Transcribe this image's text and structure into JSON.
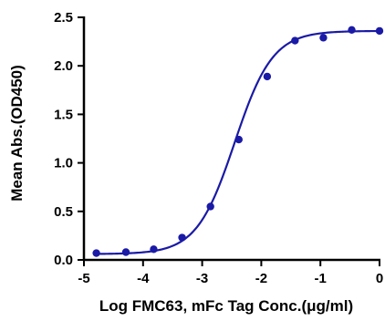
{
  "chart_data": {
    "type": "scatter",
    "title": "",
    "xlabel": "Log FMC63, mFc Tag Conc.(μg/ml)",
    "ylabel": "Mean Abs.(OD450)",
    "xlim": [
      -5,
      0
    ],
    "ylim": [
      0,
      2.5
    ],
    "x_ticks": [
      -5,
      -4,
      -3,
      -2,
      -1,
      0
    ],
    "x_tick_labels": [
      "-5",
      "-4",
      "-3",
      "-2",
      "-1",
      "0"
    ],
    "y_ticks": [
      0,
      0.5,
      1,
      1.5,
      2,
      2.5
    ],
    "y_tick_labels": [
      "0.0",
      "0.5",
      "1.0",
      "1.5",
      "2.0",
      "2.5"
    ],
    "grid": false,
    "legend": "none",
    "series": [
      {
        "color": "#1a1aa6",
        "x": [
          -4.79,
          -4.29,
          -3.82,
          -3.34,
          -2.86,
          -2.38,
          -1.9,
          -1.43,
          -0.95,
          -0.47,
          0.0
        ],
        "y": [
          0.07,
          0.08,
          0.11,
          0.23,
          0.55,
          1.24,
          1.89,
          2.26,
          2.29,
          2.37,
          2.36
        ],
        "fit": {
          "model": "4PL",
          "bottom": 0.06,
          "top": 2.36,
          "log_ec50": -2.45,
          "hill_slope": 1.35,
          "x_start": -4.79,
          "x_end": 0.0
        }
      }
    ]
  }
}
